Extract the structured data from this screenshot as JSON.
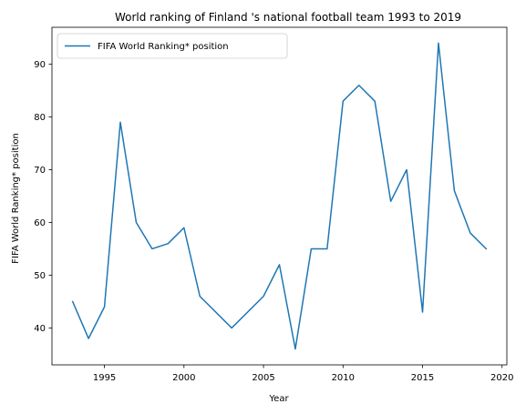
{
  "chart_data": {
    "type": "line",
    "title": "World ranking of Finland 's national football team 1993 to 2019",
    "xlabel": "Year",
    "ylabel": "FIFA World Ranking* position",
    "xlim": [
      1991.7,
      2020.3
    ],
    "ylim": [
      33,
      97
    ],
    "xticks": [
      1995,
      2000,
      2005,
      2010,
      2015,
      2020
    ],
    "yticks": [
      40,
      50,
      60,
      70,
      80,
      90
    ],
    "legend_position": "top-left",
    "grid": false,
    "series": [
      {
        "name": "FIFA World Ranking* position",
        "color": "#1f77b4",
        "x": [
          1993,
          1994,
          1995,
          1996,
          1997,
          1998,
          1999,
          2000,
          2001,
          2003,
          2005,
          2006,
          2007,
          2008,
          2009,
          2010,
          2011,
          2012,
          2013,
          2014,
          2015,
          2016,
          2017,
          2018,
          2019
        ],
        "y": [
          45,
          38,
          44,
          79,
          60,
          55,
          56,
          59,
          46,
          40,
          46,
          52,
          36,
          55,
          55,
          83,
          86,
          83,
          64,
          70,
          43,
          94,
          66,
          58,
          55
        ]
      }
    ]
  }
}
